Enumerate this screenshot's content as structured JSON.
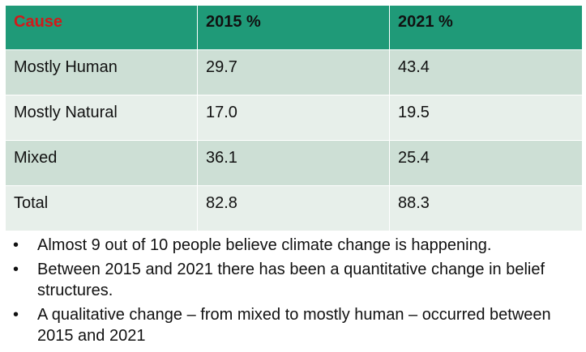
{
  "table": {
    "headers": [
      "Cause",
      "2015 %",
      "2021 %"
    ],
    "rows": [
      [
        "Mostly Human",
        "29.7",
        "43.4"
      ],
      [
        "Mostly Natural",
        "17.0",
        "19.5"
      ],
      [
        "Mixed",
        "36.1",
        "25.4"
      ],
      [
        "Total",
        "82.8",
        "88.3"
      ]
    ]
  },
  "notes": [
    "Almost 9 out of 10 people believe  climate change is happening.",
    "Between 2015 and 2021 there has been a quantitative  change in belief structures.",
    "A qualitative change – from mixed to mostly human – occurred between 2015 and 2021"
  ],
  "bullet_glyph": "•",
  "colors": {
    "header_bg": "#1f9a78",
    "header_cause_text": "#d11a1a",
    "row_odd_bg": "#cddfd5",
    "row_even_bg": "#e7efea"
  }
}
